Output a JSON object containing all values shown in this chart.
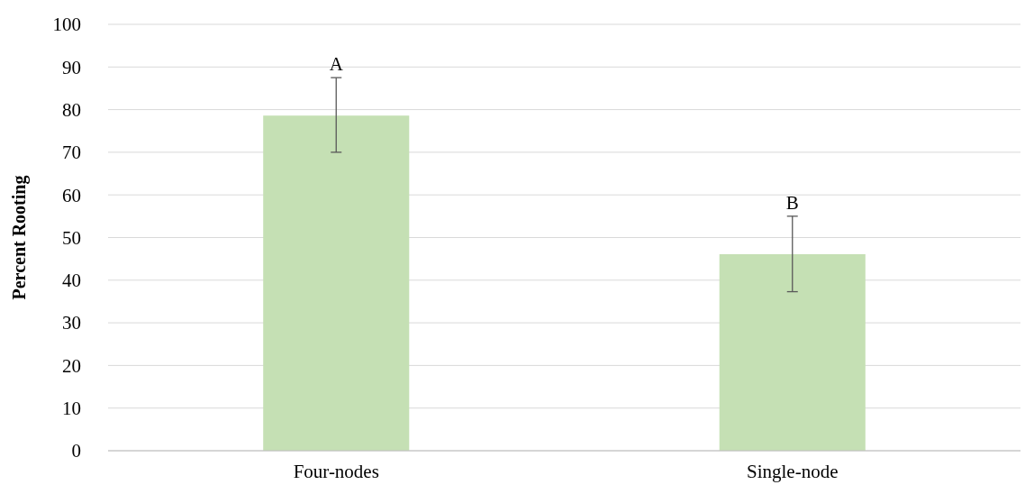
{
  "chart_data": {
    "type": "bar",
    "ylabel": "Percent Rooting",
    "categories": [
      "Four-nodes",
      "Single-node"
    ],
    "values": [
      78.6,
      46.1
    ],
    "errors": [
      [
        70,
        87.5
      ],
      [
        37.3,
        55
      ]
    ],
    "color": "#c5e0b4",
    "ylim": [
      0,
      100
    ],
    "yticks": [
      0,
      10,
      20,
      30,
      40,
      50,
      60,
      70,
      80,
      90,
      100
    ],
    "grid": "y",
    "annotations": [
      {
        "text": "A",
        "x": "Four-nodes",
        "y": 87.5
      },
      {
        "text": "B",
        "x": "Single-node",
        "y": 55
      }
    ]
  }
}
